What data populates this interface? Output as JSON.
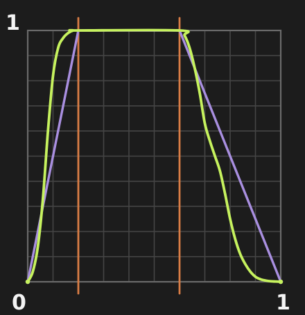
{
  "chart_data": {
    "type": "line",
    "xlim": [
      0,
      1
    ],
    "ylim": [
      0,
      1
    ],
    "grid": true,
    "grid_divisions": 10,
    "x_tick_labels": [
      "0",
      "1"
    ],
    "y_tick_labels": [
      "1"
    ],
    "vertical_markers": [
      {
        "x": 0.2,
        "color": "#d97d45"
      },
      {
        "x": 0.6,
        "color": "#d97d45"
      }
    ],
    "series": [
      {
        "color": "#a98fe0",
        "x": [
          0,
          0.2,
          0.6,
          1
        ],
        "y": [
          0,
          1,
          1,
          0
        ]
      },
      {
        "color": "#c6f25e",
        "x": [
          0,
          0.02,
          0.04,
          0.06,
          0.08,
          0.1,
          0.12,
          0.14,
          0.16,
          0.18,
          0.2,
          0.6,
          0.62,
          0.64,
          0.66,
          0.68,
          0.7,
          0.72,
          0.74,
          0.76,
          0.78,
          0.8,
          0.82,
          0.84,
          0.86,
          0.88,
          0.9,
          0.92,
          0.94,
          0.96,
          0.98,
          1
        ],
        "y": [
          0,
          0.04,
          0.14,
          0.33,
          0.6,
          0.82,
          0.93,
          0.97,
          0.99,
          1,
          1,
          1,
          0.98,
          0.93,
          0.85,
          0.75,
          0.63,
          0.56,
          0.5,
          0.44,
          0.35,
          0.25,
          0.17,
          0.11,
          0.07,
          0.04,
          0.02,
          0.01,
          0.005,
          0.002,
          0.001,
          0
        ]
      }
    ]
  }
}
